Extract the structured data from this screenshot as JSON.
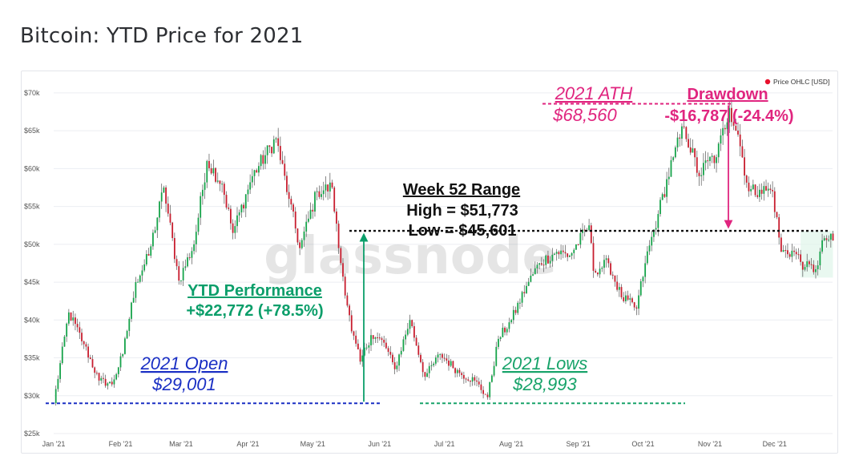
{
  "page": {
    "title": "Bitcoin: YTD Price for 2021"
  },
  "chart_data": {
    "type": "candlestick",
    "title": "Bitcoin: YTD Price for 2021",
    "legend": {
      "label": "Price OHLC [USD]",
      "color": "#e8112d",
      "placement": "top-right"
    },
    "watermark": "glassnode",
    "ylim": [
      25000,
      72000
    ],
    "y_ticks": [
      {
        "value": 25000,
        "label": "$25k"
      },
      {
        "value": 30000,
        "label": "$30k"
      },
      {
        "value": 35000,
        "label": "$35k"
      },
      {
        "value": 40000,
        "label": "$40k"
      },
      {
        "value": 45000,
        "label": "$45k"
      },
      {
        "value": 50000,
        "label": "$50k"
      },
      {
        "value": 55000,
        "label": "$55k"
      },
      {
        "value": 60000,
        "label": "$60k"
      },
      {
        "value": 65000,
        "label": "$65k"
      },
      {
        "value": 70000,
        "label": "$70k"
      }
    ],
    "x_range": [
      "2021-01-01",
      "2021-12-28"
    ],
    "x_ticks": [
      {
        "date": "2021-01-01",
        "label": "Jan '21"
      },
      {
        "date": "2021-02-01",
        "label": "Feb '21"
      },
      {
        "date": "2021-03-01",
        "label": "Mar '21"
      },
      {
        "date": "2021-04-01",
        "label": "Apr '21"
      },
      {
        "date": "2021-05-01",
        "label": "May '21"
      },
      {
        "date": "2021-06-01",
        "label": "Jun '21"
      },
      {
        "date": "2021-07-01",
        "label": "Jul '21"
      },
      {
        "date": "2021-08-01",
        "label": "Aug '21"
      },
      {
        "date": "2021-09-01",
        "label": "Sep '21"
      },
      {
        "date": "2021-10-01",
        "label": "Oct '21"
      },
      {
        "date": "2021-11-01",
        "label": "Nov '21"
      },
      {
        "date": "2021-12-01",
        "label": "Dec '21"
      }
    ],
    "colors": {
      "up": "#16a34a",
      "down": "#c81e2f",
      "wick": "#555555"
    },
    "close_path": [
      {
        "date": "2021-01-01",
        "close": 29001
      },
      {
        "date": "2021-01-08",
        "close": 41000
      },
      {
        "date": "2021-01-15",
        "close": 36800
      },
      {
        "date": "2021-01-22",
        "close": 32000
      },
      {
        "date": "2021-01-28",
        "close": 31500
      },
      {
        "date": "2021-02-02",
        "close": 35500
      },
      {
        "date": "2021-02-08",
        "close": 45000
      },
      {
        "date": "2021-02-14",
        "close": 48500
      },
      {
        "date": "2021-02-21",
        "close": 57500
      },
      {
        "date": "2021-02-28",
        "close": 45200
      },
      {
        "date": "2021-03-07",
        "close": 50000
      },
      {
        "date": "2021-03-13",
        "close": 61000
      },
      {
        "date": "2021-03-20",
        "close": 58000
      },
      {
        "date": "2021-03-25",
        "close": 51500
      },
      {
        "date": "2021-04-03",
        "close": 59000
      },
      {
        "date": "2021-04-14",
        "close": 64000
      },
      {
        "date": "2021-04-20",
        "close": 56000
      },
      {
        "date": "2021-04-25",
        "close": 49500
      },
      {
        "date": "2021-05-03",
        "close": 57000
      },
      {
        "date": "2021-05-10",
        "close": 57500
      },
      {
        "date": "2021-05-13",
        "close": 49500
      },
      {
        "date": "2021-05-19",
        "close": 38500
      },
      {
        "date": "2021-05-23",
        "close": 34500
      },
      {
        "date": "2021-05-28",
        "close": 38000
      },
      {
        "date": "2021-06-03",
        "close": 37000
      },
      {
        "date": "2021-06-08",
        "close": 33500
      },
      {
        "date": "2021-06-15",
        "close": 40000
      },
      {
        "date": "2021-06-22",
        "close": 32500
      },
      {
        "date": "2021-06-29",
        "close": 35500
      },
      {
        "date": "2021-07-08",
        "close": 33000
      },
      {
        "date": "2021-07-15",
        "close": 32000
      },
      {
        "date": "2021-07-21",
        "close": 29800
      },
      {
        "date": "2021-07-26",
        "close": 37500
      },
      {
        "date": "2021-08-01",
        "close": 40000
      },
      {
        "date": "2021-08-08",
        "close": 44500
      },
      {
        "date": "2021-08-14",
        "close": 47500
      },
      {
        "date": "2021-08-22",
        "close": 49000
      },
      {
        "date": "2021-08-28",
        "close": 48500
      },
      {
        "date": "2021-09-06",
        "close": 52500
      },
      {
        "date": "2021-09-08",
        "close": 46500
      },
      {
        "date": "2021-09-15",
        "close": 47500
      },
      {
        "date": "2021-09-21",
        "close": 43000
      },
      {
        "date": "2021-09-28",
        "close": 41500
      },
      {
        "date": "2021-10-02",
        "close": 47500
      },
      {
        "date": "2021-10-08",
        "close": 54000
      },
      {
        "date": "2021-10-15",
        "close": 61500
      },
      {
        "date": "2021-10-20",
        "close": 65500
      },
      {
        "date": "2021-10-27",
        "close": 59000
      },
      {
        "date": "2021-10-31",
        "close": 61000
      },
      {
        "date": "2021-11-04",
        "close": 61500
      },
      {
        "date": "2021-11-10",
        "close": 68000
      },
      {
        "date": "2021-11-14",
        "close": 64500
      },
      {
        "date": "2021-11-19",
        "close": 57000
      },
      {
        "date": "2021-11-24",
        "close": 57200
      },
      {
        "date": "2021-11-30",
        "close": 57000
      },
      {
        "date": "2021-12-04",
        "close": 49000
      },
      {
        "date": "2021-12-10",
        "close": 49000
      },
      {
        "date": "2021-12-15",
        "close": 47000
      },
      {
        "date": "2021-12-20",
        "close": 46700
      },
      {
        "date": "2021-12-24",
        "close": 50800
      },
      {
        "date": "2021-12-28",
        "close": 50500
      }
    ],
    "annotations": {
      "ath": {
        "title": "2021 ATH",
        "value": "$68,560",
        "price": 68560,
        "date": "2021-11-10",
        "color": "#e0257f"
      },
      "drawdown": {
        "title": "Drawdown",
        "value": "-$16,787 (-24.4%)",
        "color": "#e0257f"
      },
      "week52": {
        "title": "Week 52 Range",
        "high": "High = $51,773",
        "low": "Low = $45,601",
        "high_price": 51773,
        "color": "#111111"
      },
      "ytd": {
        "title": "YTD Performance",
        "value": "+$22,772 (+78.5%)",
        "color": "#0b9e6a"
      },
      "open": {
        "title": "2021 Open",
        "value": "$29,001",
        "price": 29001,
        "color": "#1a2fc4"
      },
      "lows": {
        "title": "2021 Lows",
        "value": "$28,993",
        "price": 28993,
        "color": "#18a36a"
      }
    }
  }
}
